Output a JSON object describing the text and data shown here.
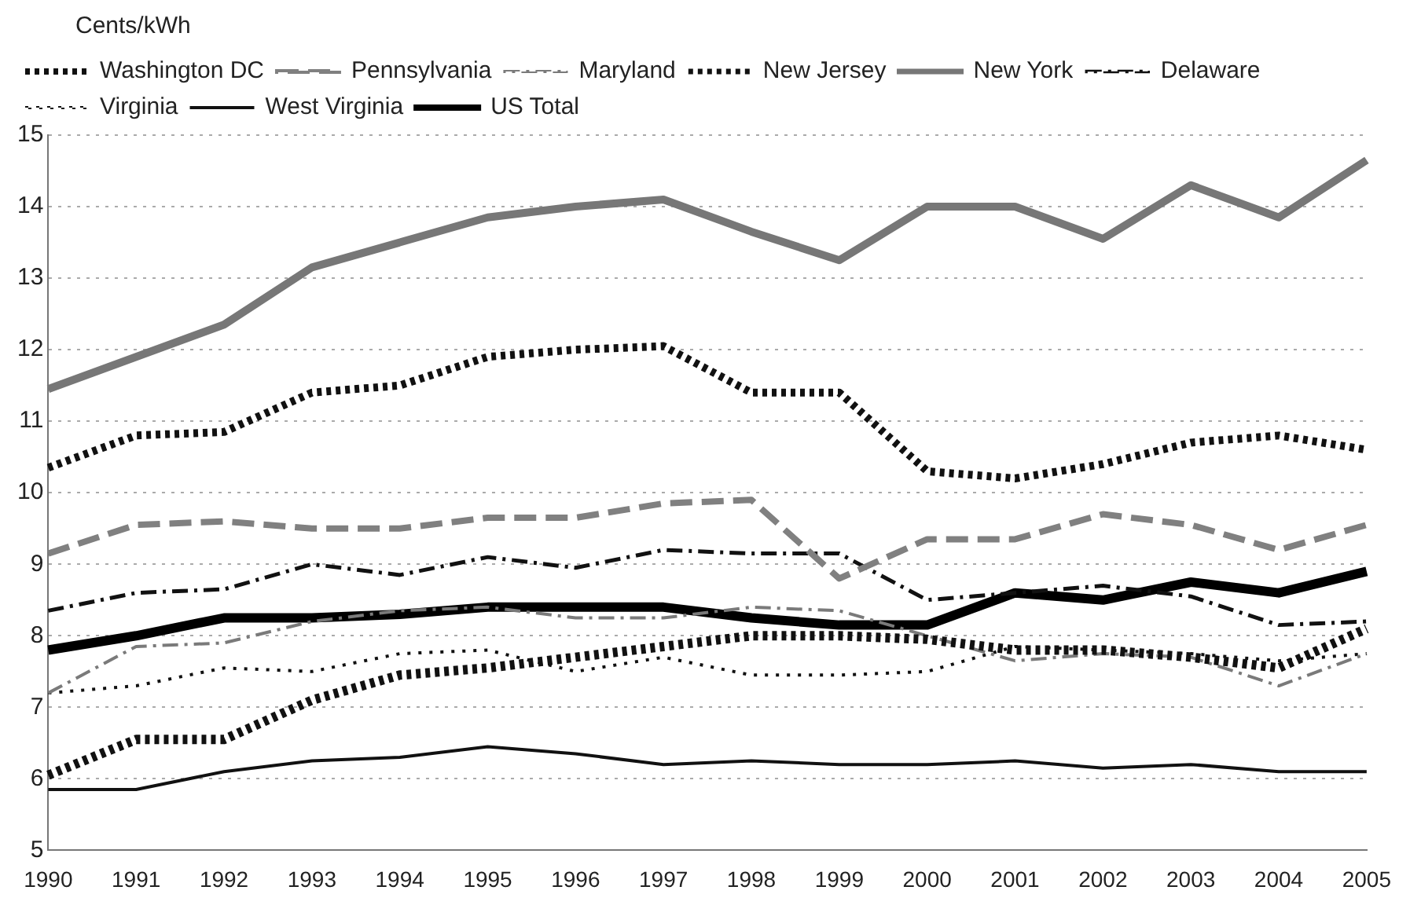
{
  "chart_data": {
    "type": "line",
    "ylabel": "Cents/kWh",
    "categories": [
      "1990",
      "1991",
      "1992",
      "1993",
      "1994",
      "1995",
      "1996",
      "1997",
      "1998",
      "1999",
      "2000",
      "2001",
      "2002",
      "2003",
      "2004",
      "2005"
    ],
    "ylim": [
      5,
      15
    ],
    "yticks": [
      5,
      6,
      7,
      8,
      9,
      10,
      11,
      12,
      13,
      14,
      15
    ],
    "grid": "y",
    "legend": "top",
    "marker": "none",
    "series": [
      {
        "name": "Washington DC",
        "color": "#111111",
        "line_style": "dotted",
        "values": [
          6.05,
          6.55,
          6.55,
          7.1,
          7.45,
          7.55,
          7.7,
          7.85,
          8.0,
          8.0,
          7.95,
          7.8,
          7.8,
          7.7,
          7.55,
          8.1
        ]
      },
      {
        "name": "Pennsylvania",
        "color": "#808080",
        "line_style": "dashed",
        "values": [
          9.15,
          9.55,
          9.6,
          9.5,
          9.5,
          9.65,
          9.65,
          9.85,
          9.9,
          8.8,
          9.35,
          9.35,
          9.7,
          9.55,
          9.2,
          9.55
        ]
      },
      {
        "name": "Maryland",
        "color": "#7a7a7a",
        "line_style": "dashed",
        "values": [
          7.2,
          7.85,
          7.9,
          8.2,
          8.35,
          8.4,
          8.25,
          8.25,
          8.4,
          8.35,
          8.0,
          7.65,
          7.75,
          7.7,
          7.3,
          7.75
        ]
      },
      {
        "name": "New Jersey",
        "color": "#111111",
        "line_style": "dotted",
        "values": [
          10.35,
          10.8,
          10.85,
          11.4,
          11.5,
          11.9,
          12.0,
          12.05,
          11.4,
          11.4,
          10.3,
          10.2,
          10.4,
          10.7,
          10.8,
          10.6
        ]
      },
      {
        "name": "New York",
        "color": "#777777",
        "line_style": "solid",
        "values": [
          11.45,
          11.9,
          12.35,
          13.15,
          13.5,
          13.85,
          14.0,
          14.1,
          13.65,
          13.25,
          14.0,
          14.0,
          13.55,
          14.3,
          13.85,
          14.65
        ]
      },
      {
        "name": "Delaware",
        "color": "#111111",
        "line_style": "dashed",
        "values": [
          8.35,
          8.6,
          8.65,
          9.0,
          8.85,
          9.1,
          8.95,
          9.2,
          9.15,
          9.15,
          8.5,
          8.6,
          8.7,
          8.55,
          8.15,
          8.2
        ]
      },
      {
        "name": "Virginia",
        "color": "#111111",
        "line_style": "dotted",
        "values": [
          7.2,
          7.3,
          7.55,
          7.5,
          7.75,
          7.8,
          7.5,
          7.7,
          7.45,
          7.45,
          7.5,
          7.85,
          7.8,
          7.75,
          7.65,
          7.75
        ]
      },
      {
        "name": "West Virginia",
        "color": "#111111",
        "line_style": "solid",
        "values": [
          5.85,
          5.85,
          6.1,
          6.25,
          6.3,
          6.45,
          6.35,
          6.2,
          6.25,
          6.2,
          6.2,
          6.25,
          6.15,
          6.2,
          6.1,
          6.1
        ]
      },
      {
        "name": "US Total",
        "color": "#000000",
        "line_style": "solid",
        "values": [
          7.8,
          8.0,
          8.25,
          8.25,
          8.3,
          8.4,
          8.4,
          8.4,
          8.25,
          8.15,
          8.15,
          8.6,
          8.5,
          8.75,
          8.6,
          8.9
        ]
      }
    ]
  }
}
